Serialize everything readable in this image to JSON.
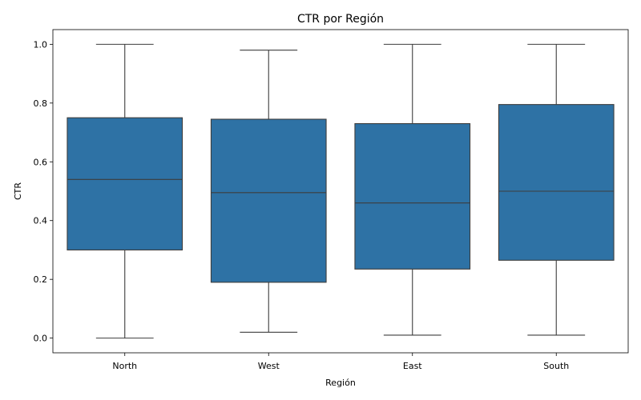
{
  "chart_data": {
    "type": "box",
    "title": "CTR por Región",
    "xlabel": "Región",
    "ylabel": "CTR",
    "ylim": [
      -0.05,
      1.05
    ],
    "yticks": [
      0.0,
      0.2,
      0.4,
      0.6,
      0.8,
      1.0
    ],
    "ytick_labels": [
      "0.0",
      "0.2",
      "0.4",
      "0.6",
      "0.8",
      "1.0"
    ],
    "grid": false,
    "color": "#2e72a5",
    "categories": [
      "North",
      "West",
      "East",
      "South"
    ],
    "boxes": [
      {
        "category": "North",
        "whisker_low": 0.0,
        "q1": 0.3,
        "median": 0.54,
        "q3": 0.75,
        "whisker_high": 1.0
      },
      {
        "category": "West",
        "whisker_low": 0.02,
        "q1": 0.19,
        "median": 0.495,
        "q3": 0.745,
        "whisker_high": 0.98
      },
      {
        "category": "East",
        "whisker_low": 0.01,
        "q1": 0.235,
        "median": 0.46,
        "q3": 0.73,
        "whisker_high": 1.0
      },
      {
        "category": "South",
        "whisker_low": 0.01,
        "q1": 0.265,
        "median": 0.5,
        "q3": 0.795,
        "whisker_high": 1.0
      }
    ]
  }
}
